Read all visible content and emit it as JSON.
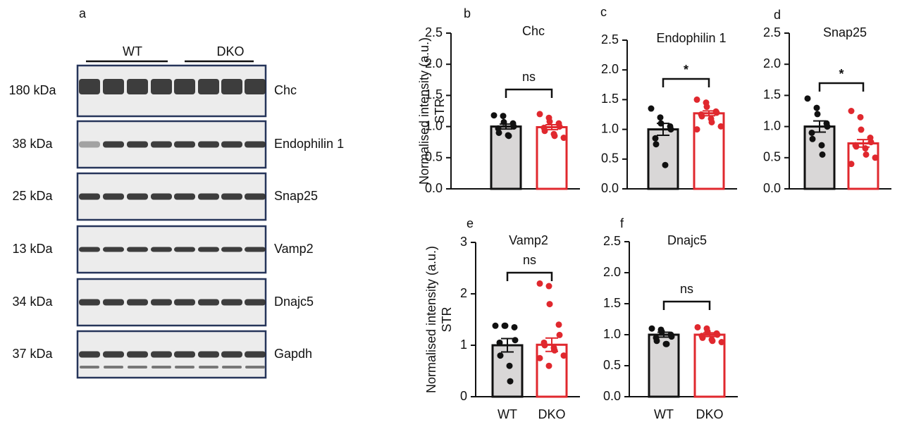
{
  "panel_a": {
    "label": "a",
    "groups": [
      "WT",
      "DKO"
    ],
    "rows": [
      {
        "size": "180 kDa",
        "protein": "Chc"
      },
      {
        "size": "38 kDa",
        "protein": "Endophilin 1"
      },
      {
        "size": "25 kDa",
        "protein": "Snap25"
      },
      {
        "size": "13 kDa",
        "protein": "Vamp2"
      },
      {
        "size": "34 kDa",
        "protein": "Dnajc5"
      },
      {
        "size": "37 kDa",
        "protein": "Gapdh"
      }
    ]
  },
  "chart_data": [
    {
      "type": "bar",
      "label": "b",
      "title": "Chc",
      "ylabel": [
        "Normalised intensity (a.u.)",
        "STR"
      ],
      "categories": [
        null,
        null
      ],
      "values": [
        1.0,
        0.99
      ],
      "errors": [
        0.04,
        0.04
      ],
      "points": [
        [
          1.18,
          1.17,
          1.07,
          1.05,
          1.0,
          0.97,
          0.9,
          0.86,
          0.85
        ],
        [
          1.2,
          1.14,
          1.08,
          1.05,
          1.0,
          0.98,
          0.93,
          0.88,
          0.85,
          0.82
        ]
      ],
      "colors": [
        "#111111",
        "#e0282e"
      ],
      "fills": [
        "#d9d7d7",
        "#ffffff"
      ],
      "significance": "ns",
      "ylim": [
        0,
        2.5
      ],
      "yticks": [
        {
          "value": 0,
          "label": "0.0"
        },
        0.5,
        {
          "value": 1,
          "label": "1.0"
        },
        1.5,
        {
          "value": 2,
          "label": "2.0"
        },
        2.5
      ]
    },
    {
      "type": "bar",
      "label": "c",
      "title": "Endophilin 1",
      "categories": [
        null,
        null
      ],
      "values": [
        1.0,
        1.27
      ],
      "errors": [
        0.1,
        0.04
      ],
      "points": [
        [
          1.35,
          1.2,
          1.1,
          1.05,
          1.0,
          0.85,
          0.75,
          0.4
        ],
        [
          1.5,
          1.45,
          1.38,
          1.3,
          1.28,
          1.25,
          1.22,
          1.18,
          1.12,
          1.05,
          1.0
        ]
      ],
      "colors": [
        "#111111",
        "#e0282e"
      ],
      "fills": [
        "#d9d7d7",
        "#ffffff"
      ],
      "significance": "*",
      "ylim": [
        0,
        2.5
      ],
      "yticks": [
        {
          "value": 0,
          "label": "0.0"
        },
        0.5,
        {
          "value": 1,
          "label": "1.0"
        },
        1.5,
        {
          "value": 2,
          "label": "2.0"
        },
        2.5
      ]
    },
    {
      "type": "bar",
      "label": "d",
      "title": "Snap25",
      "categories": [
        null,
        null
      ],
      "values": [
        1.0,
        0.73
      ],
      "errors": [
        0.09,
        0.06
      ],
      "points": [
        [
          1.45,
          1.3,
          1.2,
          1.05,
          1.0,
          0.9,
          0.8,
          0.7,
          0.55
        ],
        [
          1.25,
          1.15,
          0.95,
          0.82,
          0.75,
          0.7,
          0.68,
          0.65,
          0.55,
          0.5,
          0.4
        ]
      ],
      "colors": [
        "#111111",
        "#e0282e"
      ],
      "fills": [
        "#d9d7d7",
        "#ffffff"
      ],
      "significance": "*",
      "ylim": [
        0,
        2.5
      ],
      "yticks": [
        {
          "value": 0,
          "label": "0.0"
        },
        0.5,
        {
          "value": 1,
          "label": "1.0"
        },
        1.5,
        {
          "value": 2,
          "label": "2.0"
        },
        2.5
      ]
    },
    {
      "type": "bar",
      "label": "e",
      "title": "Vamp2",
      "ylabel": [
        "Normalised intensity (a.u.)",
        "STR"
      ],
      "categories": [
        "WT",
        "DKO"
      ],
      "values": [
        1.0,
        1.01
      ],
      "errors": [
        0.13,
        0.13
      ],
      "points": [
        [
          1.38,
          1.38,
          1.38,
          1.35,
          1.1,
          1.05,
          0.8,
          0.6,
          0.3
        ],
        [
          2.2,
          2.15,
          1.8,
          1.4,
          1.2,
          1.05,
          1.0,
          0.95,
          0.9,
          0.8,
          0.75,
          0.6
        ]
      ],
      "colors": [
        "#111111",
        "#e0282e"
      ],
      "fills": [
        "#d9d7d7",
        "#ffffff"
      ],
      "significance": "ns",
      "ylim": [
        0,
        3
      ],
      "yticks": [
        0,
        1,
        2,
        3
      ]
    },
    {
      "type": "bar",
      "label": "f",
      "title": "Dnajc5",
      "categories": [
        "WT",
        "DKO"
      ],
      "values": [
        1.0,
        1.0
      ],
      "errors": [
        0.04,
        0.03
      ],
      "points": [
        [
          1.1,
          1.08,
          1.05,
          1.0,
          0.97,
          0.95,
          0.9,
          0.85,
          0.85
        ],
        [
          1.12,
          1.1,
          1.05,
          1.02,
          1.0,
          0.98,
          0.95,
          0.92,
          0.9,
          0.88
        ]
      ],
      "colors": [
        "#111111",
        "#e0282e"
      ],
      "fills": [
        "#d9d7d7",
        "#ffffff"
      ],
      "significance": "ns",
      "ylim": [
        0,
        2.5
      ],
      "yticks": [
        {
          "value": 0,
          "label": "0.0"
        },
        0.5,
        {
          "value": 1,
          "label": "1.0"
        },
        1.5,
        {
          "value": 2,
          "label": "2.0"
        },
        2.5
      ]
    }
  ]
}
